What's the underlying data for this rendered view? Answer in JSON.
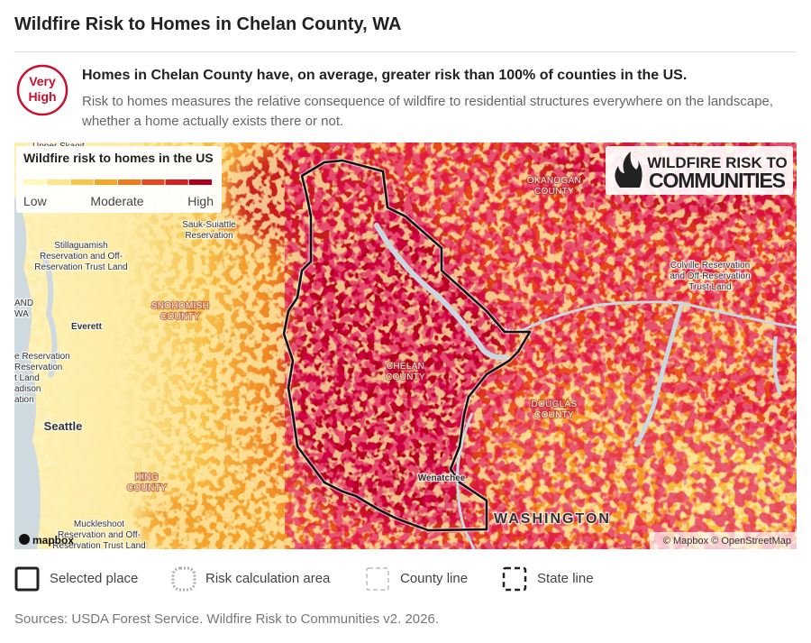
{
  "title": "Wildfire Risk to Homes in Chelan County, WA",
  "badge": {
    "lines": [
      "Very",
      "High"
    ]
  },
  "headline": "Homes in Chelan County have, on average, greater risk than 100% of counties in the US.",
  "description": "Risk to homes measures the relative consequence of wildfire to residential structures everywhere on the landscape, whether a home actually exists there or not.",
  "map": {
    "legend": {
      "title": "Wildfire risk to homes in the US",
      "labels": [
        "Low",
        "Moderate",
        "High"
      ],
      "colors": [
        "#fff8b8",
        "#fde68a",
        "#f9c547",
        "#f5a623",
        "#ef7a1c",
        "#e8461b",
        "#d4201e",
        "#b0001e"
      ]
    },
    "logo": {
      "lines": [
        "WILDFIRE RISK TO",
        "COMMUNITIES"
      ]
    },
    "place_labels": [
      {
        "lines": [
          "Upper Skagit"
        ]
      },
      {
        "lines": [
          "Sauk-Suiattle",
          "Reservation"
        ]
      },
      {
        "lines": [
          "Stillaguamish",
          "Reservation and Off-",
          "Reservation Trust Land"
        ]
      },
      {
        "lines": [
          "AND",
          "WA"
        ]
      },
      {
        "lines": [
          "SNOHOMISH",
          "COUNTY"
        ]
      },
      {
        "lines": [
          "Everett"
        ]
      },
      {
        "lines": [
          "e Reservation",
          "Reservation",
          "t Land",
          "adison",
          "ation"
        ]
      },
      {
        "lines": [
          "OKANOGAN",
          "COUNTY"
        ]
      },
      {
        "lines": [
          "Colville Reservation",
          "and Off-Reservation",
          "Trust Land"
        ]
      },
      {
        "lines": [
          "CHELAN",
          "COUNTY"
        ]
      },
      {
        "lines": [
          "DOUGLAS",
          "COUNTY"
        ]
      },
      {
        "lines": [
          "Wenatchee"
        ]
      },
      {
        "lines": [
          "Seattle"
        ]
      },
      {
        "lines": [
          "KING",
          "COUNTY"
        ]
      },
      {
        "lines": [
          "Muckleshoot",
          "Reservation and Off-",
          "Reservation Trust Land"
        ]
      },
      {
        "lines": [
          "WASHINGTON"
        ]
      }
    ],
    "mapbox_logo": "mapbox",
    "attribution": "© Mapbox © OpenStreetMap"
  },
  "key": [
    "Selected place",
    "Risk calculation area",
    "County line",
    "State line"
  ],
  "source": "Sources: USDA Forest Service. Wildfire Risk to Communities v2. 2026."
}
